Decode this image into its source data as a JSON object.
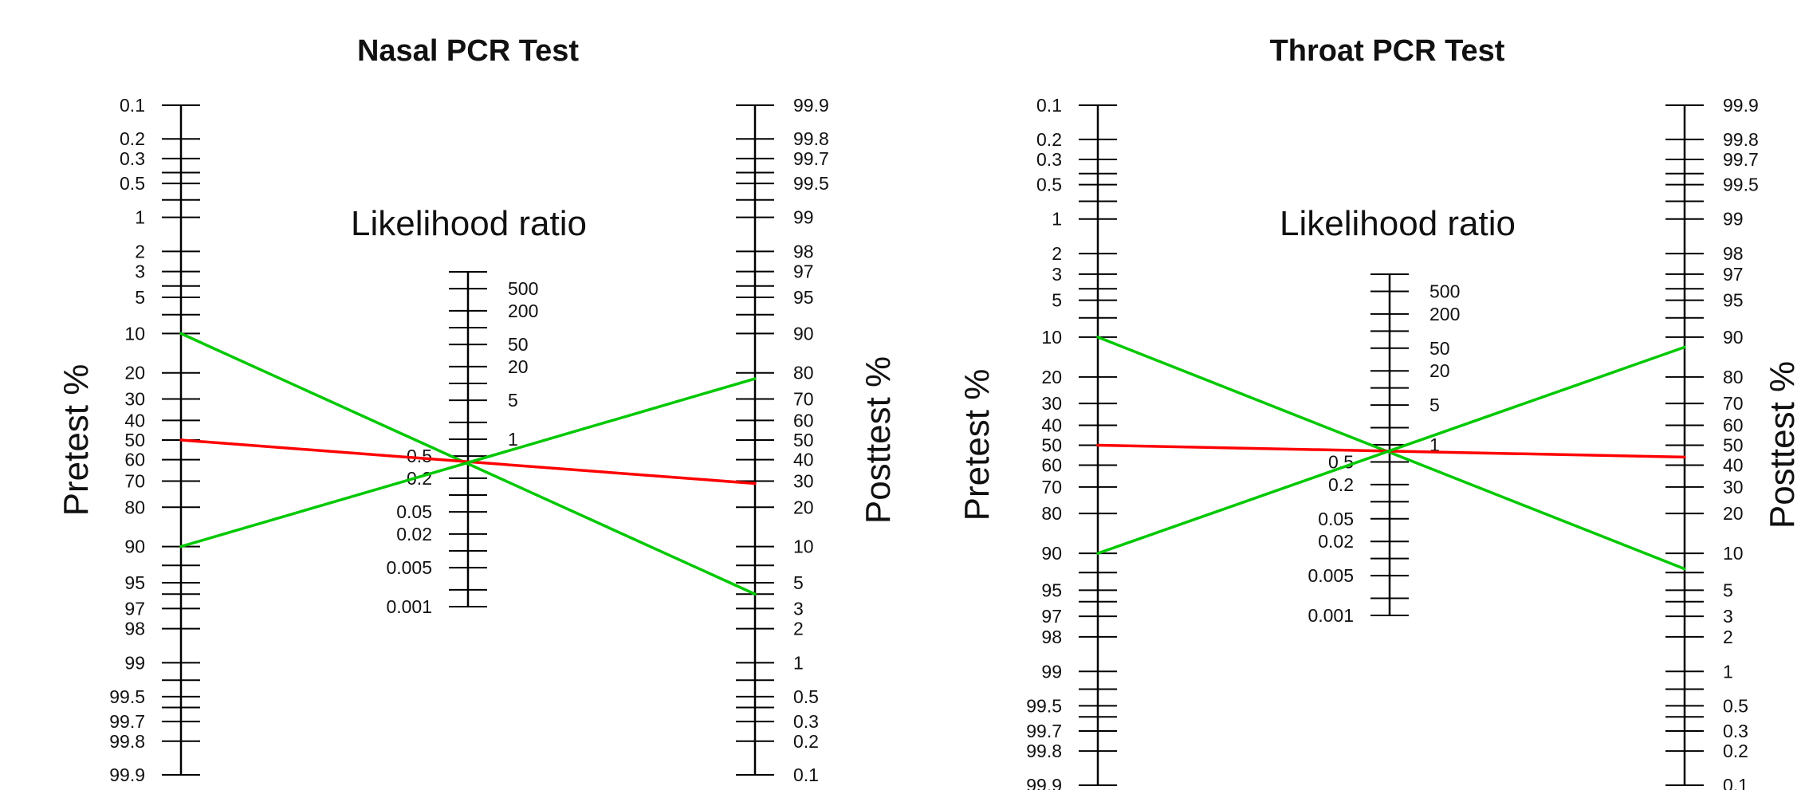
{
  "chart_data": [
    {
      "type": "nomogram",
      "title": "Nasal PCR Test",
      "pretest_axis": {
        "label": "Pretest %",
        "tick_labels": [
          "0.1",
          "0.2",
          "0.3",
          "0.5",
          "1",
          "2",
          "3",
          "5",
          "10",
          "20",
          "30",
          "40",
          "50",
          "60",
          "70",
          "80",
          "90",
          "95",
          "97",
          "98",
          "99",
          "99.5",
          "99.7",
          "99.8",
          "99.9"
        ]
      },
      "likelihood_axis": {
        "label": "Likelihood ratio",
        "tick_labels": [
          "500",
          "200",
          "50",
          "20",
          "5",
          "1",
          "0.5",
          "0.2",
          "0.05",
          "0.02",
          "0.005",
          "0.001"
        ]
      },
      "posttest_axis": {
        "label": "Posttest %",
        "tick_labels": [
          "99.9",
          "99.8",
          "99.7",
          "99.5",
          "99",
          "98",
          "97",
          "95",
          "90",
          "80",
          "70",
          "60",
          "50",
          "40",
          "30",
          "20",
          "10",
          "5",
          "3",
          "2",
          "1",
          "0.5",
          "0.3",
          "0.2",
          "0.1"
        ]
      },
      "lines": [
        {
          "color": "#00c800",
          "pretest": 10,
          "likelihood_ratio": 0.4,
          "posttest": 4
        },
        {
          "color": "#ff0000",
          "pretest": 50,
          "likelihood_ratio": 0.4,
          "posttest": 29
        },
        {
          "color": "#00c800",
          "pretest": 90,
          "likelihood_ratio": 0.4,
          "posttest": 78
        }
      ]
    },
    {
      "type": "nomogram",
      "title": "Throat PCR Test",
      "pretest_axis": {
        "label": "Pretest %",
        "tick_labels": [
          "0.1",
          "0.2",
          "0.3",
          "0.5",
          "1",
          "2",
          "3",
          "5",
          "10",
          "20",
          "30",
          "40",
          "50",
          "60",
          "70",
          "80",
          "90",
          "95",
          "97",
          "98",
          "99",
          "99.5",
          "99.7",
          "99.8",
          "99.9"
        ]
      },
      "likelihood_axis": {
        "label": "Likelihood ratio",
        "tick_labels": [
          "500",
          "200",
          "50",
          "20",
          "5",
          "1",
          "0.5",
          "0.2",
          "0.05",
          "0.02",
          "0.005",
          "0.001"
        ]
      },
      "posttest_axis": {
        "label": "Posttest %",
        "tick_labels": [
          "99.9",
          "99.8",
          "99.7",
          "99.5",
          "99",
          "98",
          "97",
          "95",
          "90",
          "80",
          "70",
          "60",
          "50",
          "40",
          "30",
          "20",
          "10",
          "5",
          "3",
          "2",
          "1",
          "0.5",
          "0.3",
          "0.2",
          "0.1"
        ]
      },
      "lines": [
        {
          "color": "#00c800",
          "pretest": 10,
          "likelihood_ratio": 0.8,
          "posttest": 7.5
        },
        {
          "color": "#ff0000",
          "pretest": 50,
          "likelihood_ratio": 0.8,
          "posttest": 44
        },
        {
          "color": "#00c800",
          "pretest": 90,
          "likelihood_ratio": 0.8,
          "posttest": 88
        }
      ]
    }
  ]
}
